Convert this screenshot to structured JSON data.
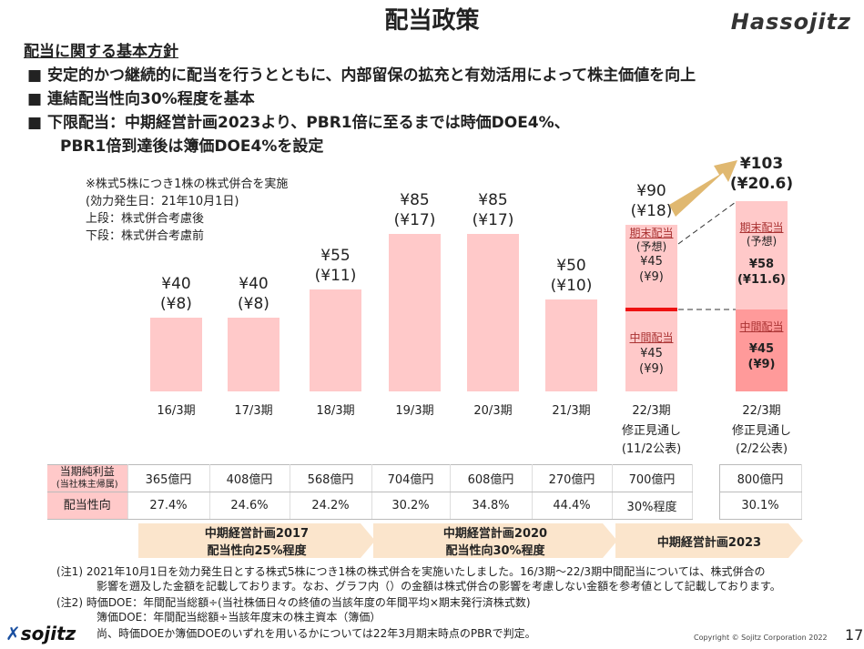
{
  "title": "配当政策",
  "brand_top": "Hassojitz",
  "policy": {
    "heading": "配当に関する基本方針",
    "bullet_icon": "square",
    "bullets": [
      "安定的かつ継続的に配当を行うとともに、内部留保の拡充と有効活用によって株主価値を向上",
      "連結配当性向30%程度を基本",
      "下限配当：中期経営計画2023より、PBR1倍に至るまでは時価DOE4%、",
      "PBR1倍到達後は簿価DOE4%を設定"
    ]
  },
  "chart_note": [
    "※株式5株につき1株の株式併合を実施",
    "(効力発生日：21年10月1日)",
    "上段：株式併合考慮後",
    "下段：株式併合考慮前"
  ],
  "chart_data": {
    "type": "bar",
    "ylabel": "",
    "xlabel": "",
    "categories": [
      "16/3期",
      "17/3期",
      "18/3期",
      "19/3期",
      "20/3期",
      "21/3期",
      "22/3期",
      "22/3期"
    ],
    "category_sub": [
      "",
      "",
      "",
      "",
      "",
      "",
      "修正見通し (11/2公表)",
      "修正見通し (2/2公表)"
    ],
    "values": [
      40,
      40,
      55,
      85,
      85,
      50,
      90,
      103
    ],
    "labels": [
      "¥40",
      "¥40",
      "¥55",
      "¥85",
      "¥85",
      "¥50",
      "¥90",
      "¥103"
    ],
    "labels_pre_merge": [
      "(¥8)",
      "(¥8)",
      "(¥11)",
      "(¥17)",
      "(¥17)",
      "(¥10)",
      "(¥18)",
      "(¥20.6)"
    ],
    "stacked": [
      {
        "index": 6,
        "interim": {
          "label": "中間配当",
          "value": "¥45",
          "pre": "(¥9)"
        },
        "year_end": {
          "label": "期末配当",
          "sub": "(予想)",
          "value": "¥45",
          "pre": "(¥9)"
        }
      },
      {
        "index": 7,
        "interim": {
          "label": "中間配当",
          "value": "¥45",
          "pre": "(¥9)"
        },
        "year_end": {
          "label": "期末配当",
          "sub": "(予想)",
          "value": "¥58",
          "pre": "(¥11.6)"
        }
      }
    ],
    "colors": {
      "bar": "#ffc9c9",
      "interim_highlight": "#ff9a9a",
      "divider": "#ee1111",
      "arrow": "#e0b870"
    }
  },
  "table": {
    "row_labels": [
      "当期純利益",
      "(当社株主帰属)",
      "配当性向"
    ],
    "net_income": [
      "365億円",
      "408億円",
      "568億円",
      "704億円",
      "608億円",
      "270億円",
      "700億円",
      "800億円"
    ],
    "payout": [
      "27.4%",
      "24.6%",
      "24.2%",
      "30.2%",
      "34.8%",
      "44.4%",
      "30%程度",
      "30.1%"
    ]
  },
  "plans": [
    {
      "name": "中期経営計画2017",
      "target": "配当性向25%程度"
    },
    {
      "name": "中期経営計画2020",
      "target": "配当性向30%程度"
    },
    {
      "name": "中期経営計画2023",
      "target": ""
    }
  ],
  "footnotes": [
    "(注1)  2021年10月1日を効力発生日とする株式5株につき1株の株式併合を実施いたしました。16/3期～22/3期中間配当については、株式併合の",
    "影響を遡及した金額を記載しております。なお、グラフ内（）の金額は株式併合の影響を考慮しない金額を参考値として記載しております。",
    "(注2)  時価DOE：年間配当総額÷(当社株価日々の終値の当該年度の年間平均×期末発行済株式数)",
    "簿価DOE：年間配当総額÷当該年度末の株主資本（簿価）",
    "尚、時価DOEか簿価DOEのいずれを用いるかについては22年3月期末時点のPBRで判定。"
  ],
  "footer": {
    "logo": "sojitz",
    "copyright": "Copyright © Sojitz Corporation 2022",
    "page": "17"
  }
}
